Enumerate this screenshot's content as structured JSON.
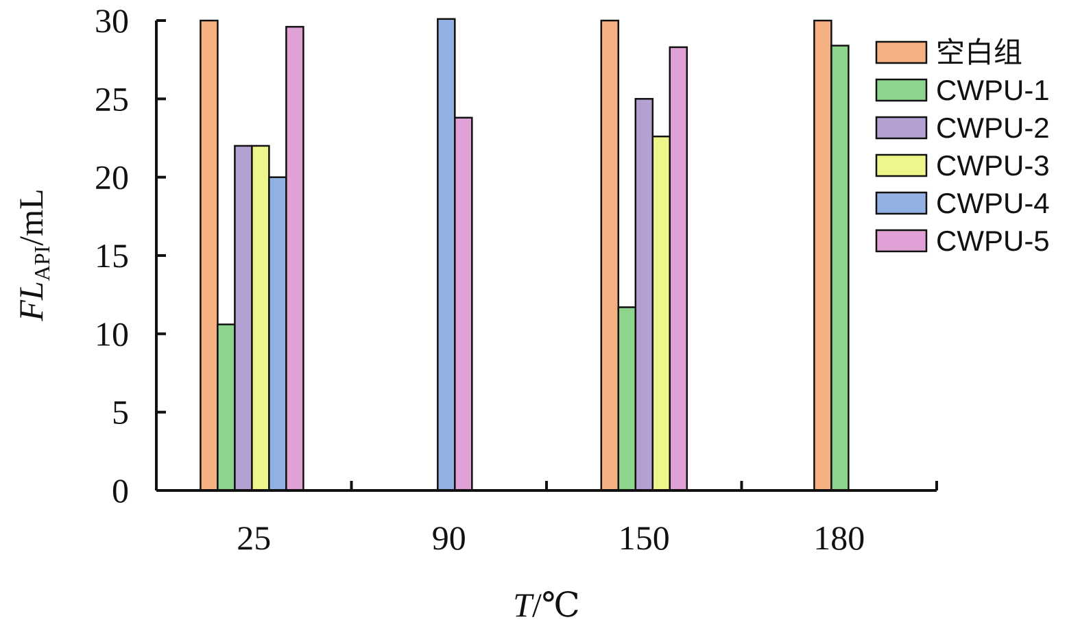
{
  "chart_data": {
    "type": "bar",
    "categories": [
      "25",
      "90",
      "150",
      "180"
    ],
    "xlabel": {
      "main": "T",
      "unit": "/℃"
    },
    "ylabel": {
      "main": "FL",
      "sub": "API",
      "unit": "/mL"
    },
    "ylim": [
      0,
      30
    ],
    "yticks": [
      "0",
      "5",
      "10",
      "15",
      "20",
      "25",
      "30"
    ],
    "grid": false,
    "legend_position": "top-right",
    "series": [
      {
        "name": "空白组",
        "color": "#f6b183",
        "values": [
          30,
          null,
          30,
          30
        ]
      },
      {
        "name": "CWPU-1",
        "color": "#8fd48c",
        "values": [
          10.6,
          null,
          11.7,
          28.4
        ]
      },
      {
        "name": "CWPU-2",
        "color": "#b4a0d2",
        "values": [
          22,
          null,
          25,
          null
        ]
      },
      {
        "name": "CWPU-3",
        "color": "#eef58a",
        "values": [
          22,
          null,
          22.6,
          null
        ]
      },
      {
        "name": "CWPU-4",
        "color": "#92b1e2",
        "values": [
          20,
          30.1,
          null,
          null
        ]
      },
      {
        "name": "CWPU-5",
        "color": "#e0a2d6",
        "values": [
          29.6,
          23.8,
          28.3,
          null
        ]
      }
    ]
  }
}
